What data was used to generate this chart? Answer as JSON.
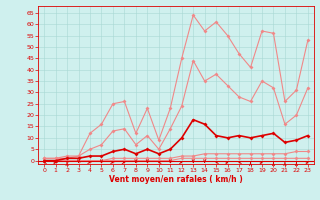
{
  "xlabel": "Vent moyen/en rafales ( km/h )",
  "xlim": [
    -0.5,
    23.5
  ],
  "ylim": [
    -1.5,
    68
  ],
  "yticks": [
    0,
    5,
    10,
    15,
    20,
    25,
    30,
    35,
    40,
    45,
    50,
    55,
    60,
    65
  ],
  "xticks": [
    0,
    1,
    2,
    3,
    4,
    5,
    6,
    7,
    8,
    9,
    10,
    11,
    12,
    13,
    14,
    15,
    16,
    17,
    18,
    19,
    20,
    21,
    22,
    23
  ],
  "bg_color": "#cff0ee",
  "dark_red": "#dd0000",
  "light_red": "#f08888",
  "x": [
    0,
    1,
    2,
    3,
    4,
    5,
    6,
    7,
    8,
    9,
    10,
    11,
    12,
    13,
    14,
    15,
    16,
    17,
    18,
    19,
    20,
    21,
    22,
    23
  ],
  "line_max": [
    1,
    1,
    2,
    2,
    12,
    16,
    25,
    26,
    12,
    23,
    9,
    23,
    45,
    64,
    57,
    61,
    55,
    47,
    41,
    57,
    56,
    26,
    31,
    53
  ],
  "line_p1std": [
    1,
    1,
    1,
    2,
    5,
    7,
    13,
    14,
    7,
    11,
    5,
    14,
    24,
    44,
    35,
    38,
    33,
    28,
    26,
    35,
    32,
    16,
    20,
    32
  ],
  "line_avg": [
    0,
    0,
    1,
    1,
    2,
    2,
    4,
    5,
    3,
    5,
    3,
    5,
    10,
    18,
    16,
    11,
    10,
    11,
    10,
    11,
    12,
    8,
    9,
    11
  ],
  "line_m1std": [
    0,
    0,
    0,
    0,
    0,
    0,
    1,
    1,
    1,
    1,
    1,
    1,
    2,
    2,
    3,
    3,
    3,
    3,
    3,
    3,
    3,
    3,
    4,
    4
  ],
  "line_min": [
    0,
    0,
    0,
    0,
    0,
    0,
    0,
    0,
    0,
    0,
    0,
    0,
    1,
    1,
    1,
    1,
    1,
    1,
    1,
    1,
    1,
    1,
    1,
    1
  ],
  "arrow_angles": [
    225,
    45,
    90,
    270,
    315,
    270,
    315,
    315,
    270,
    270,
    225,
    270,
    315,
    270,
    270,
    225,
    45,
    225,
    90,
    45,
    90,
    90,
    90,
    45
  ]
}
